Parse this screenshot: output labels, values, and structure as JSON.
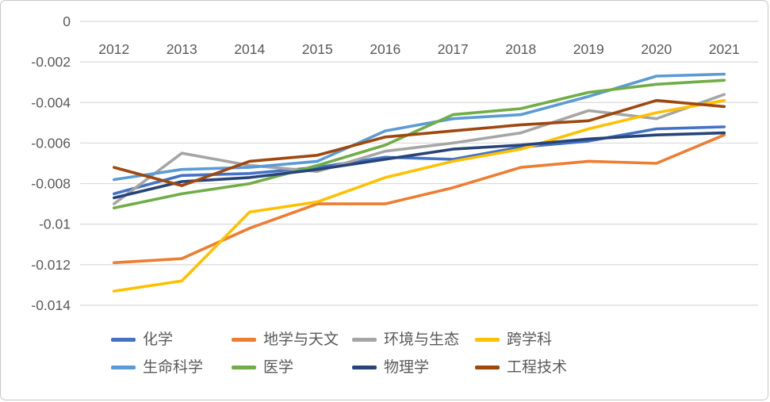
{
  "chart_data": {
    "type": "line",
    "x": [
      "2012",
      "2013",
      "2014",
      "2015",
      "2016",
      "2017",
      "2018",
      "2019",
      "2020",
      "2021"
    ],
    "series": [
      {
        "key": "chemistry",
        "name": "化学",
        "color": "#4472C4",
        "values": [
          -0.0085,
          -0.0076,
          -0.0075,
          -0.0072,
          -0.0067,
          -0.0068,
          -0.0062,
          -0.0059,
          -0.0053,
          -0.0052
        ]
      },
      {
        "key": "geoscience-astronomy",
        "name": "地学与天文",
        "color": "#ED7D31",
        "values": [
          -0.0119,
          -0.0117,
          -0.0102,
          -0.009,
          -0.009,
          -0.0082,
          -0.0072,
          -0.0069,
          -0.007,
          -0.0056
        ]
      },
      {
        "key": "environment-ecology",
        "name": "环境与生态",
        "color": "#A5A5A5",
        "values": [
          -0.009,
          -0.0065,
          -0.0071,
          -0.0074,
          -0.0064,
          -0.006,
          -0.0055,
          -0.0044,
          -0.0048,
          -0.0036
        ]
      },
      {
        "key": "interdisciplinary",
        "name": "跨学科",
        "color": "#FFC000",
        "values": [
          -0.0133,
          -0.0128,
          -0.0094,
          -0.0089,
          -0.0077,
          -0.0069,
          -0.0063,
          -0.0053,
          -0.0045,
          -0.0039
        ]
      },
      {
        "key": "life-science",
        "name": "生命科学",
        "color": "#5B9BD5",
        "values": [
          -0.0078,
          -0.0073,
          -0.0072,
          -0.0069,
          -0.0054,
          -0.0048,
          -0.0046,
          -0.0037,
          -0.0027,
          -0.0026
        ]
      },
      {
        "key": "medicine",
        "name": "医学",
        "color": "#70AD47",
        "values": [
          -0.0092,
          -0.0085,
          -0.008,
          -0.0071,
          -0.0061,
          -0.0046,
          -0.0043,
          -0.0035,
          -0.0031,
          -0.0029
        ]
      },
      {
        "key": "physics",
        "name": "物理学",
        "color": "#264478",
        "values": [
          -0.0087,
          -0.0079,
          -0.0077,
          -0.0073,
          -0.0068,
          -0.0063,
          -0.0061,
          -0.0058,
          -0.0056,
          -0.0055
        ]
      },
      {
        "key": "engineering-tech",
        "name": "工程技术",
        "color": "#9E480E",
        "values": [
          -0.0072,
          -0.0081,
          -0.0069,
          -0.0066,
          -0.0057,
          -0.0054,
          -0.0051,
          -0.0049,
          -0.0039,
          -0.0042
        ]
      }
    ],
    "title": "",
    "xlabel": "",
    "ylabel": "",
    "ylim": [
      -0.014,
      0
    ],
    "ytick_labels": [
      "0",
      "-0.002",
      "-0.004",
      "-0.006",
      "-0.008",
      "-0.01",
      "-0.012",
      "-0.014"
    ],
    "grid": true,
    "gridline_color": "#D9D9D9",
    "axis_label_color": "#595959",
    "legend_position": "bottom"
  }
}
